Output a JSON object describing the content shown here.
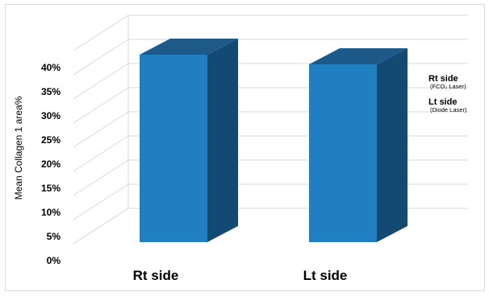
{
  "chart_data": {
    "type": "bar",
    "title": "",
    "xlabel": "",
    "ylabel": "Mean Collagen 1 area%",
    "categories": [
      "Rt side",
      "Lt side"
    ],
    "values": [
      40,
      38
    ],
    "ylim": [
      0,
      40
    ],
    "y_ticks": [
      "0%",
      "5%",
      "10%",
      "15%",
      "20%",
      "25%",
      "30%",
      "35%",
      "40%"
    ],
    "grid": true,
    "style": "3d-column",
    "bar_color": "#1f7fc1",
    "bar_top_color": "#1d5a8a",
    "bar_side_color": "#124a73",
    "annotations": [
      {
        "title": "Rt side",
        "subtitle": "(FCO₂  Laser)"
      },
      {
        "title": "Lt side",
        "subtitle": "(Diode Laser)"
      }
    ]
  }
}
